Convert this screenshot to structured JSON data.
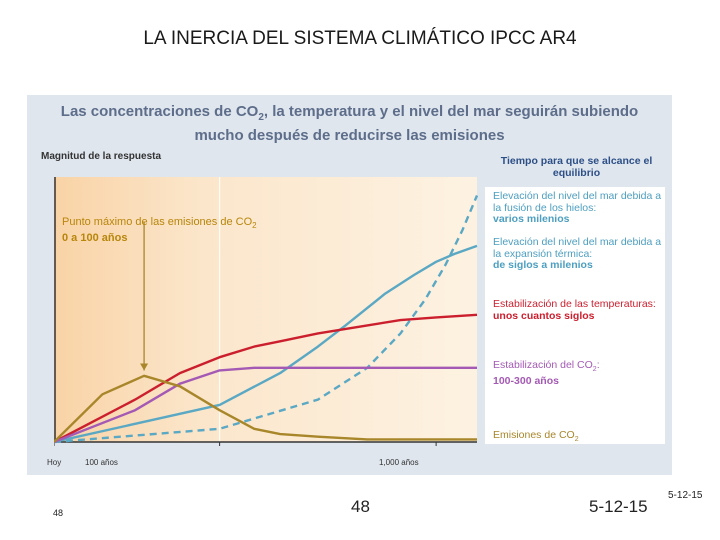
{
  "slide": {
    "title": "LA INERCIA DEL SISTEMA CLIMÁTICO IPCC AR4",
    "footer_left": "48",
    "footer_center": "48",
    "footer_date": "5-12-15",
    "footer_date_small": "5-12-15"
  },
  "chart_data": {
    "type": "line",
    "title_line1": "Las concentraciones de CO",
    "title_sub": "2",
    "title_line1b": ", la temperatura y el nivel del mar seguirán subiendo",
    "title_line2": "mucho después de reducirse las emisiones",
    "ylabel": "Magnitud de la respuesta",
    "xlabel_ticks": [
      "Hoy",
      "100 años",
      "1,000 años"
    ],
    "xlim": [
      0,
      1500
    ],
    "ylim": [
      0,
      1
    ],
    "peak_annotation_line1": "Punto máximo de las emisiones de CO",
    "peak_annotation_sub": "2",
    "peak_annotation_line2": "0 a 100 años",
    "legend_title": "Tiempo para que se alcance el equilibrio",
    "colors": {
      "emissions": "#a8862a",
      "co2": "#a45ab4",
      "temperature": "#cc1f2e",
      "sea_expansion": "#5aa8c4",
      "sea_ice": "#5aa8c4",
      "panel": "#fbe8cf"
    },
    "series": [
      {
        "key": "sea_ice",
        "name": "Elevación del nivel del mar debida a la fusión de los hielos:",
        "time": "varios milenios",
        "dashed": true,
        "x": [
          0,
          100,
          300,
          500,
          700,
          900,
          1100,
          1300,
          1500
        ],
        "y": [
          0.0,
          0.05,
          0.16,
          0.28,
          0.41,
          0.54,
          0.67,
          0.8,
          0.93
        ]
      },
      {
        "key": "sea_expansion",
        "name": "Elevación del nivel del mar debida a la expansión térmica:",
        "time": "de siglos a milenios",
        "dashed": false,
        "x": [
          0,
          100,
          200,
          300,
          400,
          600,
          800,
          1000,
          1200,
          1500
        ],
        "y": [
          0.0,
          0.14,
          0.26,
          0.36,
          0.44,
          0.56,
          0.63,
          0.68,
          0.71,
          0.74
        ]
      },
      {
        "key": "temperature",
        "name": "Estabilización de las temperaturas:",
        "time": "unos cuantos siglos",
        "dashed": false,
        "x": [
          0,
          30,
          60,
          100,
          150,
          200,
          300,
          500,
          700,
          1000,
          1500
        ],
        "y": [
          0.0,
          0.16,
          0.26,
          0.32,
          0.36,
          0.38,
          0.41,
          0.44,
          0.46,
          0.47,
          0.48
        ]
      },
      {
        "key": "co2",
        "name": "Estabilización del CO",
        "name_sub": "2",
        "name_suffix": ":",
        "time": "100-300 años",
        "dashed": false,
        "x": [
          0,
          30,
          60,
          100,
          150,
          200,
          300,
          1500
        ],
        "y": [
          0.0,
          0.12,
          0.22,
          0.27,
          0.28,
          0.28,
          0.28,
          0.28
        ]
      },
      {
        "key": "emissions",
        "name": "Emisiones de CO",
        "name_sub": "2",
        "time": "",
        "dashed": false,
        "x": [
          0,
          15,
          35,
          60,
          100,
          150,
          200,
          300,
          500,
          800,
          1500
        ],
        "y": [
          0.0,
          0.18,
          0.25,
          0.21,
          0.12,
          0.05,
          0.03,
          0.02,
          0.01,
          0.01,
          0.01
        ]
      }
    ]
  }
}
